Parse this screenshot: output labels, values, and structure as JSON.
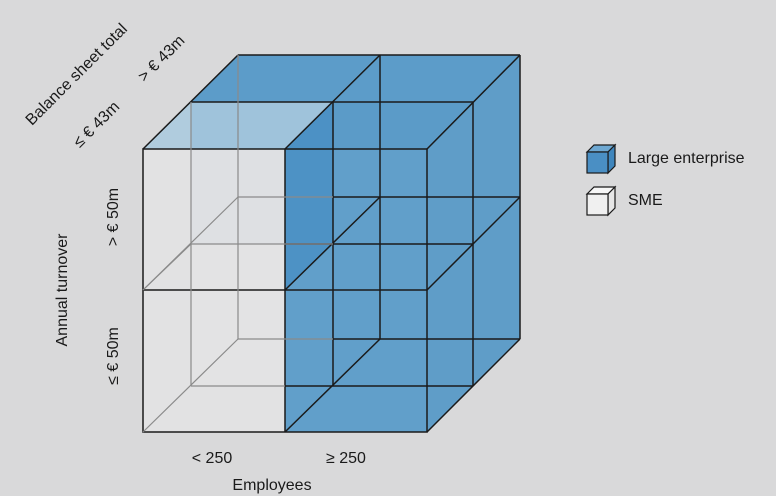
{
  "axes": {
    "employees": {
      "title": "Employees",
      "values": [
        "< 250",
        "≥ 250"
      ]
    },
    "annual_turnover": {
      "title": "Annual turnover",
      "values": [
        "≤ € 50m",
        "> € 50m"
      ]
    },
    "balance_sheet_total": {
      "title": "Balance sheet total",
      "values": [
        "≤ € 43m",
        "> € 43m"
      ]
    }
  },
  "legend": {
    "large": {
      "label": "Large enterprise",
      "color": "#4a8fc4"
    },
    "sme": {
      "label": "SME",
      "color": "#f0f0f0"
    }
  },
  "colors": {
    "background": "#d9d9da",
    "edge": "#1a1a1a"
  }
}
